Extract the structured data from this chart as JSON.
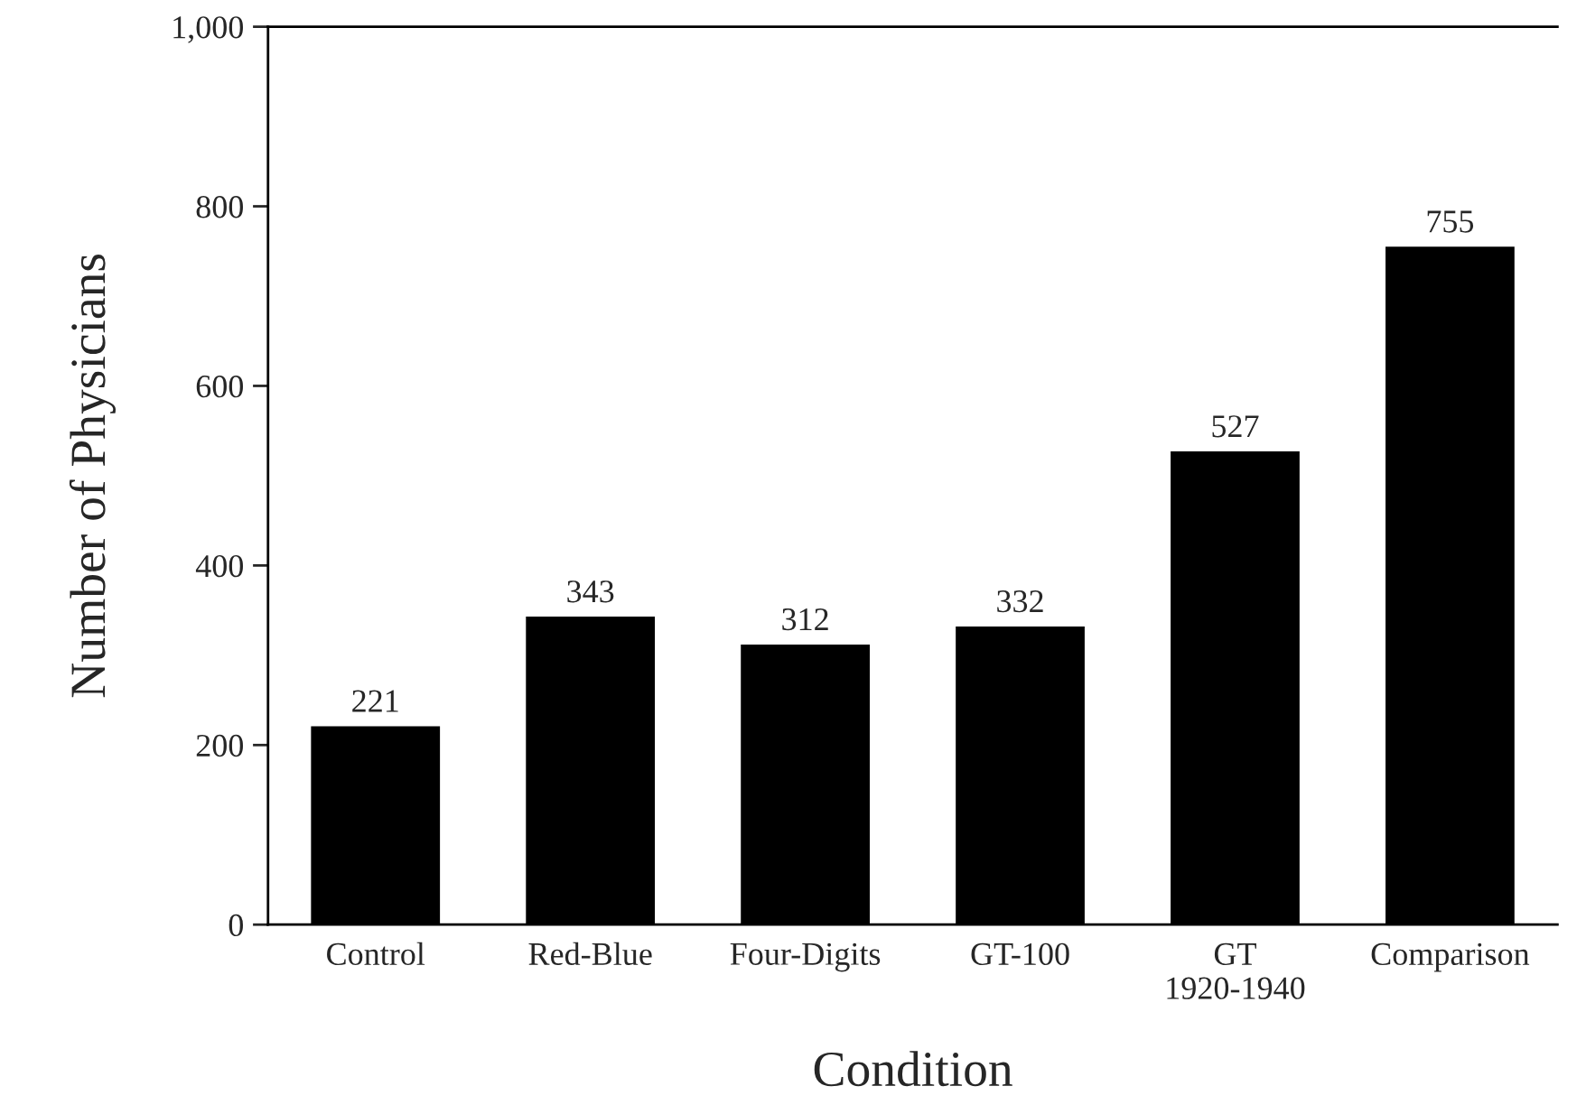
{
  "chart_data": {
    "type": "bar",
    "xlabel": "Condition",
    "ylabel": "Number of Physicians",
    "categories": [
      "Control",
      "Red-Blue",
      "Four-Digits",
      "GT-100",
      "GT\n1920-1940",
      "Comparison"
    ],
    "values": [
      221,
      343,
      312,
      332,
      527,
      755
    ],
    "color": "#000000",
    "ylim": [
      0,
      1000
    ],
    "yticks": [
      0,
      200,
      400,
      600,
      800,
      {
        "value": 1000,
        "label": "1,000"
      }
    ],
    "data_labels": true,
    "grid": false
  }
}
